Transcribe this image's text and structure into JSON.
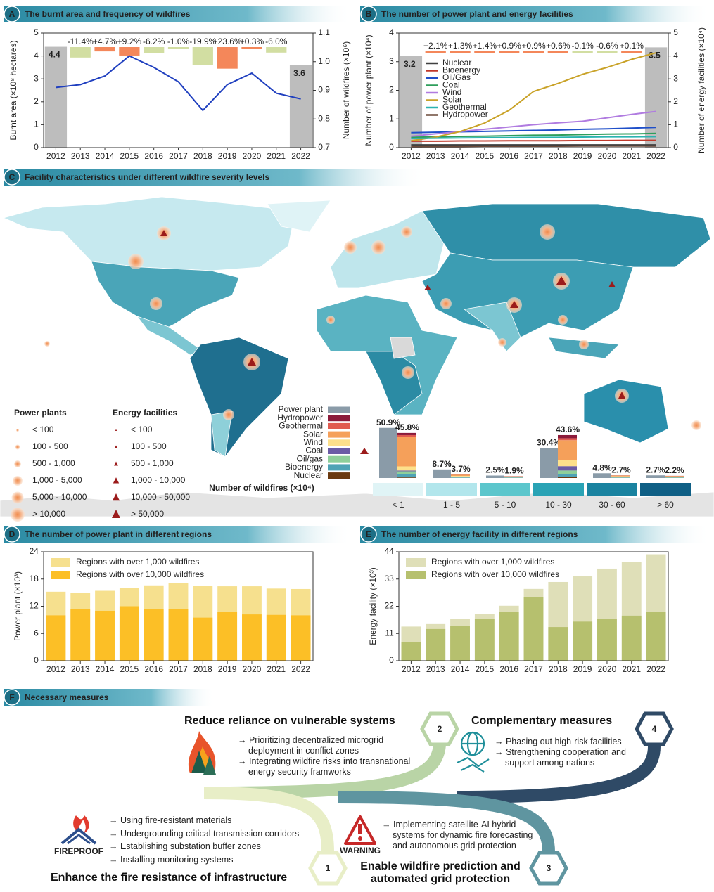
{
  "chart_data": [
    {
      "type": "combo",
      "panel": "A",
      "title": "The burnt area and frequency of wildfires",
      "categories": [
        "2012",
        "2013",
        "2014",
        "2015",
        "2016",
        "2017",
        "2018",
        "2019",
        "2020",
        "2021",
        "2022"
      ],
      "ylabel": "Burnt area (×10⁸ hectares)",
      "y2label": "Number of wildfires (×10⁶)",
      "ylim": [
        0,
        5
      ],
      "yticks": [
        0,
        1,
        2,
        3,
        4,
        5
      ],
      "y2lim": [
        0.7,
        1.1
      ],
      "y2ticks": [
        0.7,
        0.8,
        0.9,
        {
          "value": 1,
          "label": "1.0"
        },
        1.1
      ],
      "bars": {
        "color": "#bdbdbd",
        "values": [
          4.4,
          null,
          null,
          null,
          null,
          null,
          null,
          null,
          null,
          null,
          3.6
        ]
      },
      "changes": {
        "increase_color": "#f4875a",
        "decrease_color": "#d2dea2",
        "values": [
          null,
          -11.4,
          4.7,
          9.2,
          -6.2,
          -1.0,
          -19.9,
          23.6,
          0.3,
          -6.0,
          null
        ],
        "value_labels": [
          null,
          "-11.4%",
          "+4.7%",
          "+9.2%",
          "-6.2%",
          "-1.0%",
          "-19.9%",
          "+23.6%",
          "+0.3%",
          "-6.0%",
          null
        ]
      },
      "series": [
        {
          "color": "#1f3fbf",
          "axis": "y2",
          "values": [
            0.91,
            0.92,
            0.95,
            1.02,
            0.98,
            0.93,
            0.83,
            0.92,
            0.96,
            0.89,
            0.87
          ]
        }
      ]
    },
    {
      "type": "combo",
      "panel": "B",
      "title": "The number of power plant and energy facilities",
      "categories": [
        "2012",
        "2013",
        "2014",
        "2015",
        "2016",
        "2017",
        "2018",
        "2019",
        "2020",
        "2021",
        "2022"
      ],
      "ylabel": "Number of power plant (×10⁴)",
      "y2label": "Number of energy facilities (×10⁴)",
      "ylim": [
        0,
        4
      ],
      "yticks": [
        0,
        1,
        2,
        3,
        4
      ],
      "y2lim": [
        0,
        5
      ],
      "y2ticks": [
        0,
        1,
        2,
        3,
        4,
        5
      ],
      "bars": {
        "color": "#bdbdbd",
        "values": [
          3.2,
          null,
          null,
          null,
          null,
          null,
          null,
          null,
          null,
          null,
          3.5
        ]
      },
      "changes": {
        "increase_color": "#f4875a",
        "decrease_color": "#d2dea2",
        "values": [
          null,
          2.1,
          1.3,
          1.4,
          0.9,
          0.9,
          0.6,
          -0.1,
          -0.6,
          0.1,
          null
        ],
        "value_labels": [
          null,
          "+2.1%",
          "+1.3%",
          "+1.4%",
          "+0.9%",
          "+0.9%",
          "+0.6%",
          "-0.1%",
          "-0.6%",
          "+0.1%",
          null
        ]
      },
      "series": [
        {
          "name": "Nuclear",
          "color": "#404040",
          "axis": "y2",
          "values": [
            0.12,
            0.12,
            0.12,
            0.12,
            0.12,
            0.12,
            0.12,
            0.12,
            0.12,
            0.12,
            0.12
          ]
        },
        {
          "name": "Bioenergy",
          "color": "#c0392b",
          "axis": "y2",
          "values": [
            0.28,
            0.28,
            0.29,
            0.29,
            0.3,
            0.3,
            0.3,
            0.31,
            0.31,
            0.32,
            0.32
          ]
        },
        {
          "name": "Oil/Gas",
          "color": "#1f4fc9",
          "axis": "y2",
          "values": [
            0.65,
            0.67,
            0.69,
            0.71,
            0.73,
            0.75,
            0.77,
            0.8,
            0.82,
            0.85,
            0.88
          ]
        },
        {
          "name": "Coal",
          "color": "#2e9e5b",
          "axis": "y2",
          "values": [
            0.45,
            0.47,
            0.49,
            0.5,
            0.52,
            0.54,
            0.55,
            0.57,
            0.59,
            0.6,
            0.62
          ]
        },
        {
          "name": "Wind",
          "color": "#b07be0",
          "axis": "y2",
          "values": [
            0.5,
            0.6,
            0.7,
            0.8,
            0.9,
            1.0,
            1.08,
            1.15,
            1.3,
            1.45,
            1.58
          ]
        },
        {
          "name": "Solar",
          "color": "#c9a227",
          "axis": "y2",
          "values": [
            0.3,
            0.46,
            0.7,
            1.07,
            1.63,
            2.45,
            2.8,
            3.2,
            3.5,
            3.85,
            4.14
          ]
        },
        {
          "name": "Geothermal",
          "color": "#2bb3b0",
          "axis": "y2",
          "values": [
            0.4,
            0.41,
            0.42,
            0.43,
            0.44,
            0.45,
            0.45,
            0.46,
            0.47,
            0.47,
            0.48
          ]
        },
        {
          "name": "Hydropower",
          "color": "#6b4a3a",
          "axis": "y2",
          "values": [
            0.05,
            0.05,
            0.05,
            0.06,
            0.06,
            0.06,
            0.06,
            0.07,
            0.07,
            0.07,
            0.07
          ]
        }
      ]
    },
    {
      "type": "stack",
      "panel": "C",
      "title": "Facility characteristics under different wildfire severity levels",
      "xlabel": "Number of wildfires (×10⁴)",
      "categories": [
        "< 1",
        "1 - 5",
        "5 - 10",
        "10 - 30",
        "30 - 60",
        "> 60"
      ],
      "category_colors": [
        "#e0f4f6",
        "#b2e6ec",
        "#5cc6cc",
        "#2aa3b5",
        "#1a83a0",
        "#0f5f85"
      ],
      "series": [
        {
          "name": "Power plant",
          "color": "#8a9ba8",
          "group": "power",
          "values": [
            50.9,
            8.7,
            2.5,
            30.4,
            4.8,
            2.7
          ],
          "value_labels": [
            "50.9%",
            "8.7%",
            "2.5%",
            "30.4%",
            "4.8%",
            "2.7%"
          ]
        },
        {
          "name": "Nuclear",
          "color": "#6b3a10",
          "group": "energy",
          "values": [
            0.6,
            0.1,
            0.1,
            1.0,
            0.1,
            0.1
          ]
        },
        {
          "name": "Bioenergy",
          "color": "#4fa3b5",
          "group": "energy",
          "values": [
            3.4,
            0.5,
            0.3,
            2.6,
            0.4,
            0.3
          ]
        },
        {
          "name": "Oil/gas",
          "color": "#8fcf9a",
          "group": "energy",
          "values": [
            2.8,
            0.6,
            0.3,
            4.0,
            0.5,
            0.4
          ]
        },
        {
          "name": "Coal",
          "color": "#6b5ca5",
          "group": "energy",
          "values": [
            0.8,
            0.3,
            0.2,
            4.4,
            0.3,
            0.2
          ]
        },
        {
          "name": "Wind",
          "color": "#fde08b",
          "group": "energy",
          "values": [
            4.2,
            0.6,
            0.3,
            6.0,
            0.4,
            0.3
          ]
        },
        {
          "name": "Solar",
          "color": "#f5a05a",
          "group": "energy",
          "values": [
            30.2,
            1.3,
            0.5,
            20.4,
            0.8,
            0.7
          ]
        },
        {
          "name": "Geothermal",
          "color": "#e05a4f",
          "group": "energy",
          "values": [
            1.6,
            0.1,
            0.1,
            2.0,
            0.1,
            0.1
          ]
        },
        {
          "name": "Hydropower",
          "color": "#8b1a3a",
          "group": "energy",
          "values": [
            2.2,
            0.2,
            0.1,
            3.2,
            0.1,
            0.1
          ]
        }
      ],
      "totals": {
        "values": [
          45.8,
          3.7,
          1.9,
          43.6,
          2.7,
          2.2
        ],
        "value_labels": [
          "45.8%",
          "3.7%",
          "1.9%",
          "43.6%",
          "2.7%",
          "2.2%"
        ]
      },
      "map_legend": [
        {
          "title": "Power plants",
          "classes": [
            "< 100",
            "100 - 500",
            "500 - 1,000",
            "1,000 - 5,000",
            "5,000 - 10,000",
            "> 10,000"
          ]
        },
        {
          "title": "Energy facilities",
          "classes": [
            "< 100",
            "100 - 500",
            "500 - 1,000",
            "1,000 - 10,000",
            "10,000 - 50,000",
            "> 50,000"
          ]
        }
      ]
    },
    {
      "type": "overlay",
      "panel": "D",
      "title": "The number of power plant in different regions",
      "categories": [
        "2012",
        "2013",
        "2014",
        "2015",
        "2016",
        "2017",
        "2018",
        "2019",
        "2020",
        "2021",
        "2022"
      ],
      "ylabel": "Power plant (×10³)",
      "ylim": [
        0,
        24
      ],
      "yticks": [
        0,
        6,
        12,
        18,
        24
      ],
      "series": [
        {
          "name": "Regions with over 1,000 wildfires",
          "color": "#f6e08e",
          "values": [
            15.2,
            15.0,
            15.4,
            16.1,
            16.6,
            17.1,
            16.5,
            16.4,
            16.4,
            15.9,
            15.8
          ]
        },
        {
          "name": "Regions with over 10,000 wildfires",
          "color": "#fcbf26",
          "values": [
            10.0,
            11.4,
            11.0,
            12.0,
            11.3,
            11.4,
            9.5,
            10.8,
            10.2,
            10.1,
            10.0
          ]
        }
      ]
    },
    {
      "type": "overlay",
      "panel": "E",
      "title": "The number of energy facility in different regions",
      "categories": [
        "2012",
        "2013",
        "2014",
        "2015",
        "2016",
        "2017",
        "2018",
        "2019",
        "2020",
        "2021",
        "2022"
      ],
      "ylabel": "Energy facility (×10³)",
      "ylim": [
        0,
        44
      ],
      "yticks": [
        0,
        11,
        22,
        33,
        44
      ],
      "series": [
        {
          "name": "Regions with over 1,000 wildfires",
          "color": "#dfdfb8",
          "values": [
            13.8,
            14.8,
            16.8,
            19.0,
            22.2,
            29.0,
            31.8,
            34.2,
            37.2,
            39.8,
            43.0
          ]
        },
        {
          "name": "Regions with over 10,000 wildfires",
          "color": "#b6c06e",
          "values": [
            7.6,
            12.8,
            14.0,
            16.8,
            19.6,
            25.8,
            13.6,
            15.8,
            16.8,
            18.2,
            19.6
          ]
        }
      ]
    }
  ],
  "measures": {
    "panel": "F",
    "title": "Necessary measures",
    "blocks": [
      {
        "number": 1,
        "title": "Enhance the fire resistance of infrastructure",
        "icon_label": "FIREPROOF",
        "items": [
          "→ Using fire-resistant materials",
          "→ Undergrounding critical transmission corridors",
          "→ Establishing substation buffer zones",
          "→ Installing monitoring systems"
        ]
      },
      {
        "number": 2,
        "title": "Reduce reliance on vulnerable systems",
        "items": [
          "→ Prioritizing decentralized microgrid deployment in conflict zones",
          "→ Integrating wildfire risks into transnational energy security framworks"
        ]
      },
      {
        "number": 3,
        "title": "Enable wildfire prediction and automated grid protection",
        "icon_label": "WARNING",
        "items": [
          "→ Implementing satellite-AI hybrid systems for dynamic fire forecasting and autonomous grid protection"
        ]
      },
      {
        "number": 4,
        "title": "Complementary measures",
        "items": [
          "→ Phasing out high-risk facilities",
          "→ Strengthening cooperation and support among nations"
        ]
      }
    ]
  }
}
